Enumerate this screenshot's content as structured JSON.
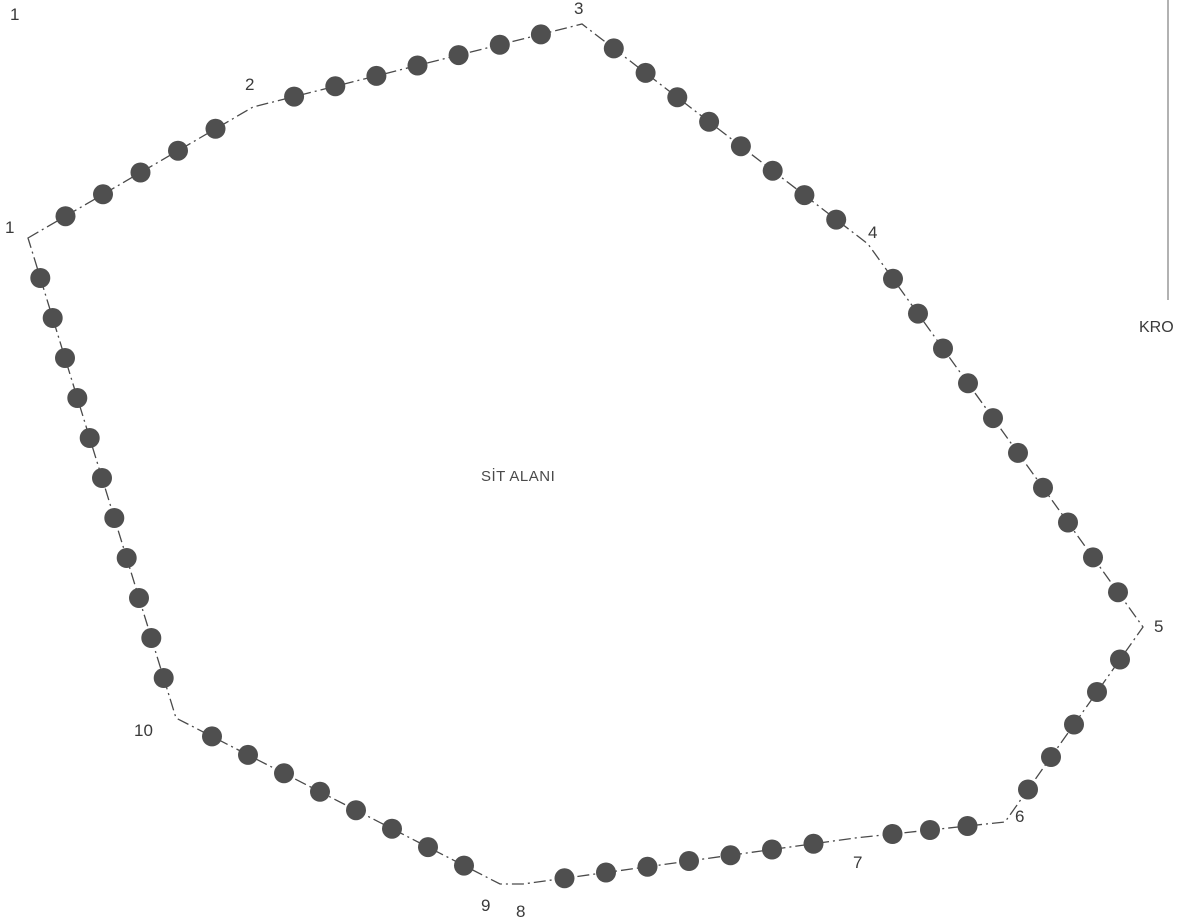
{
  "map": {
    "area_name": "SİT ALANI",
    "corner_label": "1",
    "right_edge_label": "KRO",
    "boundary_color": "#4a4a4a",
    "marker_color": "#4f4f4f",
    "vertices": [
      {
        "label": "1"
      },
      {
        "label": "2"
      },
      {
        "label": "3"
      },
      {
        "label": "4"
      },
      {
        "label": "5"
      },
      {
        "label": "6"
      },
      {
        "label": "7"
      },
      {
        "label": "8"
      },
      {
        "label": "9"
      },
      {
        "label": "10"
      }
    ]
  }
}
